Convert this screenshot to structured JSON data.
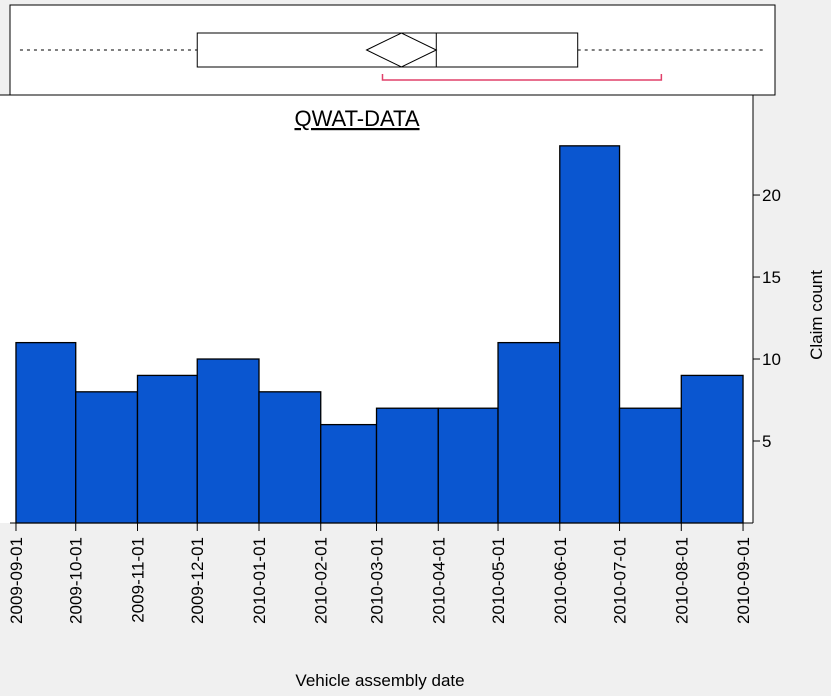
{
  "chart_data": {
    "type": "histogram",
    "title": "QWAT-DATA",
    "x_label": "Vehicle assembly date",
    "y_label": "Claim count",
    "bins": [
      "2009-09-01",
      "2009-10-01",
      "2009-11-01",
      "2009-12-01",
      "2010-01-01",
      "2010-02-01",
      "2010-03-01",
      "2010-04-01",
      "2010-05-01",
      "2010-06-01",
      "2010-07-01",
      "2010-08-01",
      "2010-09-01"
    ],
    "values": [
      11,
      8,
      9,
      10,
      8,
      6,
      7,
      7,
      11,
      23,
      7,
      9
    ],
    "color": "#0a56d0",
    "xlim": [
      "2009-08-29",
      "2010-09-06"
    ],
    "ylim": [
      0,
      26.1
    ],
    "yticks": [
      5,
      10,
      15,
      20
    ],
    "boxplot": {
      "whisker_low": "2009-09-03",
      "q1": "2009-12-01",
      "median": "2010-03-31",
      "q3": "2010-06-10",
      "whisker_high": "2010-09-12",
      "mean_ci": [
        "2010-02-24",
        "2010-03-31"
      ],
      "shortest_half": [
        "2010-03-04",
        "2010-07-22"
      ],
      "shortest_half_color": "#e0406a"
    }
  }
}
